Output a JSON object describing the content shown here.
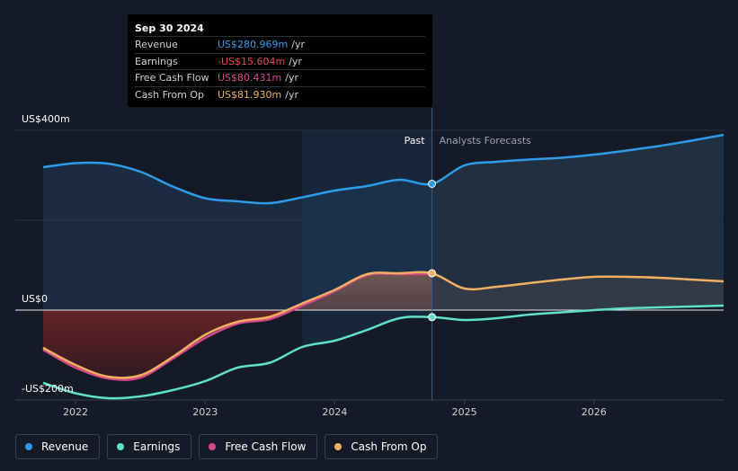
{
  "tooltip": {
    "date": "Sep 30 2024",
    "rows": [
      {
        "label": "Revenue",
        "value": "US$280.969m",
        "unit": "/yr",
        "color": "#2e9be8"
      },
      {
        "label": "Earnings",
        "value": "-US$15.604m",
        "unit": "/yr",
        "color": "#e84a4a"
      },
      {
        "label": "Free Cash Flow",
        "value": "US$80.431m",
        "unit": "/yr",
        "color": "#d9478a"
      },
      {
        "label": "Cash From Op",
        "value": "US$81.930m",
        "unit": "/yr",
        "color": "#f0b060"
      }
    ]
  },
  "legend": [
    {
      "label": "Revenue",
      "color": "#2e9be8"
    },
    {
      "label": "Earnings",
      "color": "#5fe0c8"
    },
    {
      "label": "Free Cash Flow",
      "color": "#d9478a"
    },
    {
      "label": "Cash From Op",
      "color": "#f0b060"
    }
  ],
  "chart_data": {
    "type": "line",
    "period_labels": {
      "past": "Past",
      "forecast": "Analysts Forecasts"
    },
    "y_tick_labels": [
      "US$400m",
      "US$0",
      "-US$200m"
    ],
    "x_tick_labels": [
      "2022",
      "2023",
      "2024",
      "2025",
      "2026"
    ],
    "ylim": [
      -200,
      400
    ],
    "xlim": [
      2021.75,
      2027.0
    ],
    "highlight_x": 2024.75,
    "grid": true,
    "series": [
      {
        "name": "Revenue",
        "color": "#2e9be8",
        "x": [
          2021.75,
          2022.0,
          2022.25,
          2022.5,
          2022.75,
          2023.0,
          2023.25,
          2023.5,
          2023.75,
          2024.0,
          2024.25,
          2024.5,
          2024.75,
          2025.0,
          2025.25,
          2025.5,
          2025.75,
          2026.0,
          2026.25,
          2026.5,
          2026.75,
          2027.0
        ],
        "y": [
          318,
          327,
          326,
          308,
          275,
          249,
          242,
          238,
          251,
          266,
          276,
          290,
          281,
          322,
          330,
          335,
          339,
          346,
          355,
          365,
          377,
          390
        ]
      },
      {
        "name": "Earnings",
        "color": "#5fe0c8",
        "x": [
          2021.75,
          2022.0,
          2022.25,
          2022.5,
          2022.75,
          2023.0,
          2023.25,
          2023.5,
          2023.75,
          2024.0,
          2024.25,
          2024.5,
          2024.75,
          2025.0,
          2025.25,
          2025.5,
          2025.75,
          2026.0,
          2026.25,
          2026.5,
          2026.75,
          2027.0
        ],
        "y": [
          -162,
          -185,
          -196,
          -192,
          -178,
          -158,
          -128,
          -117,
          -82,
          -68,
          -44,
          -18,
          -15.6,
          -22,
          -18,
          -10,
          -5,
          0,
          4,
          6,
          8,
          10
        ]
      },
      {
        "name": "Free Cash Flow",
        "color": "#d9478a",
        "x": [
          2021.75,
          2022.0,
          2022.25,
          2022.5,
          2022.75,
          2023.0,
          2023.25,
          2023.5,
          2023.75,
          2024.0,
          2024.25,
          2024.5,
          2024.75
        ],
        "y": [
          -88,
          -128,
          -152,
          -150,
          -108,
          -62,
          -30,
          -20,
          10,
          42,
          78,
          80,
          80.4
        ]
      },
      {
        "name": "Cash From Op",
        "color": "#f0b060",
        "x": [
          2021.75,
          2022.0,
          2022.25,
          2022.5,
          2022.75,
          2023.0,
          2023.25,
          2023.5,
          2023.75,
          2024.0,
          2024.25,
          2024.5,
          2024.75,
          2025.0,
          2025.25,
          2025.5,
          2025.75,
          2026.0,
          2026.25,
          2026.5,
          2026.75,
          2027.0
        ],
        "y": [
          -84,
          -122,
          -148,
          -145,
          -104,
          -55,
          -26,
          -15,
          15,
          45,
          80,
          82,
          81.9,
          48,
          52,
          60,
          68,
          74,
          74,
          72,
          68,
          64
        ]
      }
    ]
  }
}
